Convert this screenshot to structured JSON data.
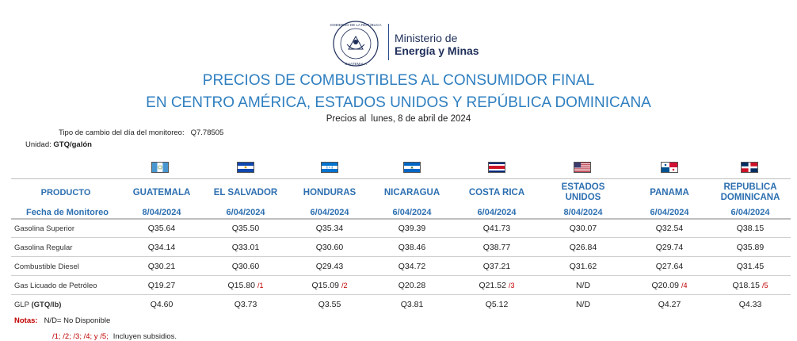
{
  "logo": {
    "seal_top_text": "GOBIERNO DE LA REPÚBLICA",
    "seal_bottom_text": "GUATEMALA",
    "line1": "Ministerio de",
    "line2": "Energía y Minas"
  },
  "title_line1": "PRECIOS DE COMBUSTIBLES AL CONSUMIDOR FINAL",
  "title_line2": "EN CENTRO AMÉRICA, ESTADOS UNIDOS Y REPÚBLICA DOMINICANA",
  "prices_label": "Precios al",
  "prices_date": "lunes, 8 de abril de 2024",
  "exchange_label": "Tipo de cambio del día del monitoreo:",
  "exchange_value": "Q7.78505",
  "unit_label": "Unidad:",
  "unit_value": "GTQ/galón",
  "header_product": "PRODUCTO",
  "header_date_label": "Fecha de Monitoreo",
  "countries": [
    {
      "name": "GUATEMALA",
      "date": "8/04/2024",
      "flag": "guatemala-flag"
    },
    {
      "name": "EL SALVADOR",
      "date": "6/04/2024",
      "flag": "el-salvador-flag"
    },
    {
      "name": "HONDURAS",
      "date": "6/04/2024",
      "flag": "honduras-flag"
    },
    {
      "name": "NICARAGUA",
      "date": "6/04/2024",
      "flag": "nicaragua-flag"
    },
    {
      "name": "COSTA RICA",
      "date": "6/04/2024",
      "flag": "costa-rica-flag"
    },
    {
      "name": "ESTADOS UNIDOS",
      "date": "8/04/2024",
      "flag": "usa-flag"
    },
    {
      "name": "PANAMA",
      "date": "6/04/2024",
      "flag": "panama-flag"
    },
    {
      "name": "REPUBLICA DOMINICANA",
      "date": "6/04/2024",
      "flag": "dominican-republic-flag"
    }
  ],
  "rows": [
    {
      "product": "Gasolina Superior",
      "values": [
        "Q35.64",
        "Q35.50",
        "Q35.34",
        "Q39.39",
        "Q41.73",
        "Q30.07",
        "Q32.54",
        "Q38.15"
      ],
      "notes": [
        "",
        "",
        "",
        "",
        "",
        "",
        "",
        ""
      ]
    },
    {
      "product": "Gasolina Regular",
      "values": [
        "Q34.14",
        "Q33.01",
        "Q30.60",
        "Q38.46",
        "Q38.77",
        "Q26.84",
        "Q29.74",
        "Q35.89"
      ],
      "notes": [
        "",
        "",
        "",
        "",
        "",
        "",
        "",
        ""
      ]
    },
    {
      "product": "Combustible Diesel",
      "values": [
        "Q30.21",
        "Q30.60",
        "Q29.43",
        "Q34.72",
        "Q37.21",
        "Q31.62",
        "Q27.64",
        "Q31.45"
      ],
      "notes": [
        "",
        "",
        "",
        "",
        "",
        "",
        "",
        ""
      ]
    },
    {
      "product": "Gas Licuado de Petróleo",
      "values": [
        "Q19.27",
        "Q15.80",
        "Q15.09",
        "Q20.28",
        "Q21.52",
        "N/D",
        "Q20.09",
        "Q18.15"
      ],
      "notes": [
        "",
        "/1",
        "/2",
        "",
        "/3",
        "",
        "/4",
        "/5"
      ]
    },
    {
      "product": "GLP",
      "product_unit": "(GTQ/lb)",
      "values": [
        "Q4.60",
        "Q3.73",
        "Q3.55",
        "Q3.81",
        "Q5.12",
        "N/D",
        "Q4.27",
        "Q4.33"
      ],
      "notes": [
        "",
        "",
        "",
        "",
        "",
        "",
        "",
        ""
      ]
    }
  ],
  "notes_label": "Notas:",
  "notes_text": "N/D= No Disponible",
  "notes_refs": "/1; /2; /3; /4; y /5;",
  "notes_refs_text": "Incluyen subsidios.",
  "colors": {
    "title": "#2f7fc0",
    "header": "#2d6fb0",
    "note": "#c00000"
  }
}
